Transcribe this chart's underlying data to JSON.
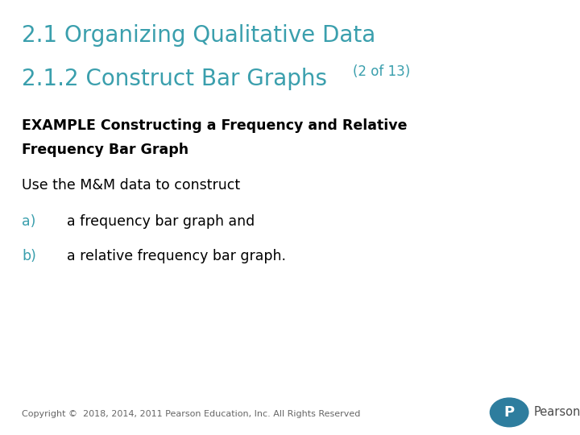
{
  "title_line1": "2.1 Organizing Qualitative Data",
  "title_line2": "2.1.2 Construct Bar Graphs",
  "title_suffix": " (2 of 13)",
  "title_color": "#3a9fad",
  "example_heading_line1": "EXAMPLE Constructing a Frequency and Relative",
  "example_heading_line2": "Frequency Bar Graph",
  "body_text": "Use the M&M data to construct",
  "item_a_label": "a)",
  "item_a_text": "a frequency bar graph and",
  "item_b_label": "b)",
  "item_b_text": "a relative frequency bar graph.",
  "item_color": "#3a9fad",
  "copyright_text": "Copyright ©  2018, 2014, 2011 Pearson Education, Inc. All Rights Reserved",
  "bg_color": "#ffffff",
  "heading_color": "#000000",
  "body_color": "#000000",
  "pearson_circle_color": "#2e7d9e",
  "pearson_text_color": "#4a4a4a"
}
